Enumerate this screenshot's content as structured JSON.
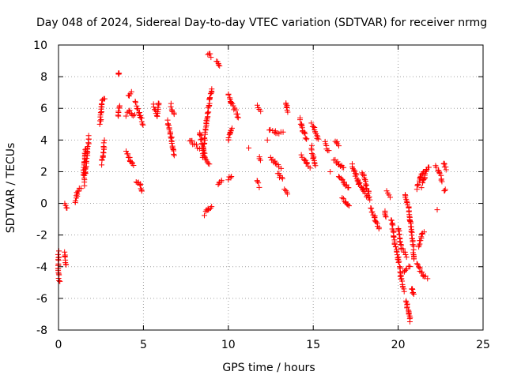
{
  "chart_data": {
    "type": "scatter",
    "title": "Day 048 of 2024, Sidereal Day-to-day VTEC variation (SDTVAR) for receiver nrmg",
    "xlabel": "GPS time / hours",
    "ylabel": "SDTVAR / TECUs",
    "xlim": [
      0,
      25
    ],
    "ylim": [
      -8,
      10
    ],
    "xticks": [
      "0",
      "5",
      "10",
      "15",
      "20",
      "25"
    ],
    "yticks": [
      "-8",
      "-6",
      "-4",
      "-2",
      "0",
      "2",
      "4",
      "6",
      "8",
      "10"
    ],
    "xtick_values": [
      0,
      5,
      10,
      15,
      20,
      25
    ],
    "ytick_values": [
      -8,
      -6,
      -4,
      -2,
      0,
      2,
      4,
      6,
      8,
      10
    ],
    "grid": true,
    "marker": "+",
    "color": "#ff0000",
    "series": [
      {
        "name": "SDTVAR",
        "tracks": [
          [
            [
              0.0,
              -3.1
            ],
            [
              0.0,
              -4.3
            ],
            [
              0.05,
              -4.9
            ]
          ],
          [
            [
              0.35,
              -3.1
            ],
            [
              0.45,
              -3.9
            ]
          ],
          [
            [
              0.35,
              -0.1
            ],
            [
              0.5,
              -0.4
            ]
          ],
          [
            [
              1.0,
              0.1
            ],
            [
              1.1,
              0.6
            ],
            [
              1.3,
              1.0
            ]
          ],
          [
            [
              1.5,
              1.2
            ],
            [
              1.6,
              2.2
            ],
            [
              1.7,
              3.2
            ],
            [
              1.8,
              4.2
            ]
          ],
          [
            [
              1.45,
              1.8
            ],
            [
              1.55,
              3.0
            ],
            [
              1.6,
              3.5
            ]
          ],
          [
            [
              2.45,
              5.0
            ],
            [
              2.55,
              6.3
            ],
            [
              2.7,
              6.7
            ]
          ],
          [
            [
              2.55,
              2.5
            ],
            [
              2.65,
              3.2
            ],
            [
              2.7,
              3.9
            ]
          ],
          [
            [
              3.55,
              8.2
            ]
          ],
          [
            [
              3.5,
              5.5
            ],
            [
              3.6,
              6.2
            ]
          ],
          [
            [
              4.0,
              5.6
            ],
            [
              4.2,
              5.8
            ],
            [
              4.5,
              5.5
            ]
          ],
          [
            [
              4.1,
              6.8
            ],
            [
              4.3,
              7.1
            ]
          ],
          [
            [
              4.0,
              3.3
            ],
            [
              4.2,
              2.8
            ],
            [
              4.4,
              2.3
            ]
          ],
          [
            [
              4.5,
              6.4
            ],
            [
              4.8,
              5.6
            ],
            [
              5.0,
              5.0
            ]
          ],
          [
            [
              4.6,
              1.4
            ],
            [
              4.8,
              1.2
            ],
            [
              4.9,
              0.8
            ]
          ],
          [
            [
              5.6,
              6.2
            ],
            [
              5.8,
              5.6
            ],
            [
              5.9,
              6.4
            ]
          ],
          [
            [
              6.4,
              5.2
            ],
            [
              6.6,
              4.4
            ],
            [
              6.8,
              3.0
            ]
          ],
          [
            [
              6.6,
              6.2
            ],
            [
              6.8,
              5.6
            ]
          ],
          [
            [
              7.7,
              4.0
            ],
            [
              8.0,
              3.7
            ],
            [
              8.3,
              3.5
            ]
          ],
          [
            [
              8.3,
              4.5
            ],
            [
              8.6,
              3.0
            ],
            [
              8.9,
              2.5
            ]
          ],
          [
            [
              8.5,
              3.0
            ],
            [
              8.7,
              5.0
            ],
            [
              8.9,
              6.5
            ],
            [
              9.05,
              7.3
            ]
          ],
          [
            [
              8.6,
              -0.7
            ],
            [
              8.8,
              -0.4
            ],
            [
              9.0,
              -0.1
            ]
          ],
          [
            [
              8.8,
              9.5
            ],
            [
              9.0,
              9.3
            ]
          ],
          [
            [
              9.3,
              9.0
            ],
            [
              9.5,
              8.6
            ]
          ],
          [
            [
              9.4,
              1.1
            ],
            [
              9.6,
              1.5
            ]
          ],
          [
            [
              10.0,
              4.0
            ],
            [
              10.1,
              4.5
            ],
            [
              10.2,
              4.8
            ]
          ],
          [
            [
              10.0,
              6.9
            ],
            [
              10.15,
              6.4
            ],
            [
              10.3,
              6.0
            ]
          ],
          [
            [
              10.4,
              5.9
            ],
            [
              10.6,
              5.4
            ]
          ],
          [
            [
              10.0,
              1.5
            ],
            [
              10.2,
              1.7
            ]
          ],
          [
            [
              11.7,
              6.2
            ],
            [
              11.9,
              5.9
            ]
          ],
          [
            [
              11.8,
              2.9
            ],
            [
              11.9,
              2.8
            ]
          ],
          [
            [
              11.7,
              1.4
            ],
            [
              11.8,
              1.1
            ]
          ],
          [
            [
              12.4,
              4.6
            ],
            [
              12.8,
              4.5
            ],
            [
              13.2,
              4.4
            ]
          ],
          [
            [
              12.5,
              2.9
            ],
            [
              12.8,
              2.5
            ],
            [
              13.1,
              2.3
            ]
          ],
          [
            [
              12.9,
              1.9
            ],
            [
              13.2,
              1.5
            ]
          ],
          [
            [
              13.4,
              6.4
            ],
            [
              13.5,
              5.7
            ]
          ],
          [
            [
              13.3,
              0.8
            ],
            [
              13.5,
              0.6
            ]
          ],
          [
            [
              14.2,
              5.3
            ],
            [
              14.4,
              4.6
            ],
            [
              14.6,
              4.0
            ]
          ],
          [
            [
              14.3,
              3.0
            ],
            [
              14.6,
              2.5
            ],
            [
              14.8,
              2.2
            ]
          ],
          [
            [
              14.9,
              5.0
            ],
            [
              15.1,
              4.6
            ],
            [
              15.3,
              4.0
            ]
          ],
          [
            [
              14.9,
              3.6
            ],
            [
              15.0,
              2.9
            ],
            [
              15.1,
              2.4
            ]
          ],
          [
            [
              15.7,
              3.7
            ],
            [
              15.9,
              3.3
            ]
          ],
          [
            [
              16.2,
              2.8
            ],
            [
              16.5,
              2.5
            ],
            [
              16.8,
              2.2
            ]
          ],
          [
            [
              16.3,
              4.0
            ],
            [
              16.5,
              3.6
            ]
          ],
          [
            [
              16.5,
              1.8
            ],
            [
              16.8,
              1.4
            ],
            [
              17.1,
              0.9
            ]
          ],
          [
            [
              16.7,
              0.3
            ],
            [
              16.9,
              0.1
            ],
            [
              17.1,
              -0.2
            ]
          ],
          [
            [
              17.3,
              2.5
            ],
            [
              17.5,
              1.8
            ],
            [
              17.7,
              1.2
            ]
          ],
          [
            [
              17.6,
              1.4
            ],
            [
              17.9,
              0.9
            ],
            [
              18.3,
              0.2
            ]
          ],
          [
            [
              17.9,
              2.0
            ],
            [
              18.1,
              1.2
            ],
            [
              18.3,
              0.5
            ]
          ],
          [
            [
              18.4,
              -0.3
            ],
            [
              18.6,
              -0.9
            ],
            [
              18.9,
              -1.6
            ]
          ],
          [
            [
              19.2,
              -0.4
            ],
            [
              19.3,
              -0.8
            ]
          ],
          [
            [
              19.3,
              0.7
            ],
            [
              19.5,
              0.4
            ]
          ],
          [
            [
              19.6,
              -1.0
            ],
            [
              19.8,
              -2.5
            ],
            [
              20.0,
              -3.5
            ],
            [
              20.15,
              -4.5
            ],
            [
              20.35,
              -5.5
            ]
          ],
          [
            [
              20.0,
              -1.5
            ],
            [
              20.2,
              -2.8
            ],
            [
              20.5,
              -3.3
            ]
          ],
          [
            [
              20.3,
              -4.3
            ],
            [
              20.5,
              -4.1
            ],
            [
              20.7,
              -4.0
            ]
          ],
          [
            [
              20.4,
              0.6
            ],
            [
              20.6,
              -0.2
            ],
            [
              20.8,
              -1.8
            ],
            [
              20.95,
              -3.6
            ]
          ],
          [
            [
              20.45,
              -6.1
            ],
            [
              20.6,
              -6.8
            ],
            [
              20.7,
              -7.4
            ]
          ],
          [
            [
              20.8,
              -5.3
            ],
            [
              20.9,
              -5.8
            ]
          ],
          [
            [
              21.1,
              -3.8
            ],
            [
              21.3,
              -4.2
            ],
            [
              21.5,
              -4.6
            ],
            [
              21.7,
              -4.7
            ]
          ],
          [
            [
              21.2,
              -2.7
            ],
            [
              21.4,
              -2.0
            ],
            [
              21.5,
              -1.8
            ]
          ],
          [
            [
              21.1,
              1.0
            ],
            [
              21.3,
              1.6
            ],
            [
              21.5,
              2.1
            ]
          ],
          [
            [
              21.4,
              1.1
            ],
            [
              21.6,
              1.9
            ],
            [
              21.8,
              2.3
            ]
          ],
          [
            [
              22.2,
              2.3
            ],
            [
              22.4,
              2.0
            ],
            [
              22.6,
              1.4
            ]
          ],
          [
            [
              22.7,
              2.6
            ],
            [
              22.8,
              2.1
            ]
          ],
          [
            [
              22.7,
              0.7
            ],
            [
              22.8,
              0.8
            ]
          ]
        ],
        "singles": [
          [
            16.0,
            2.0
          ],
          [
            15.7,
            3.9
          ],
          [
            12.3,
            4.0
          ],
          [
            22.3,
            -0.4
          ],
          [
            11.2,
            3.5
          ]
        ]
      }
    ]
  }
}
